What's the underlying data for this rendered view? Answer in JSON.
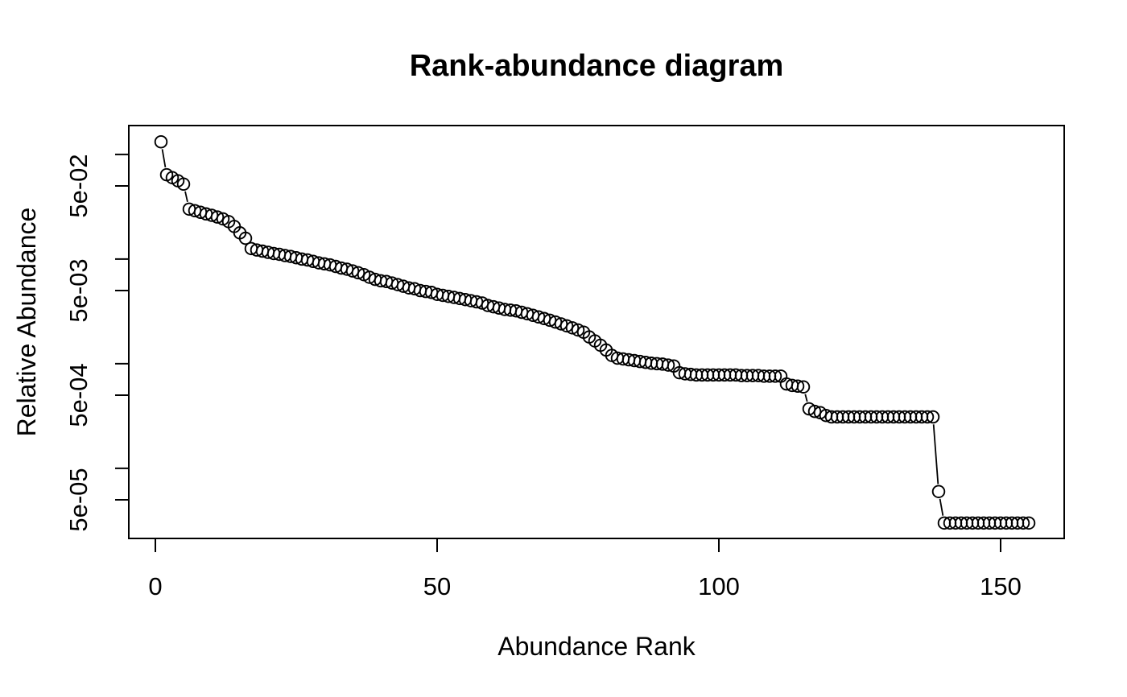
{
  "page": {
    "background": "#ffffff",
    "foreground": "#000000"
  },
  "chart_data": {
    "type": "line",
    "style": "points-with-connecting-segments (R plot type='b', open circle markers pch=1)",
    "title": "Rank-abundance diagram",
    "xlabel": "Abundance Rank",
    "ylabel": "Relative Abundance",
    "legend": "none",
    "grid": false,
    "x_axis": {
      "ticks": [
        0,
        50,
        100,
        150
      ],
      "tick_labels": [
        "0",
        "50",
        "100",
        "150"
      ],
      "lim": [
        -5,
        161
      ]
    },
    "y_axis": {
      "scale": "log10",
      "labeled_ticks": [
        {
          "label": "5e-02",
          "value": 0.05
        },
        {
          "label": "5e-03",
          "value": 0.005
        },
        {
          "label": "5e-04",
          "value": 0.0005
        },
        {
          "label": "5e-05",
          "value": 5e-05
        }
      ],
      "unlabeled_ticks": [
        0.1,
        0.01,
        0.001,
        0.0001
      ],
      "lim": [
        2.14e-05,
        0.185
      ]
    },
    "marker": "open-circle",
    "series_name": "relative abundance by species rank",
    "rank_start": 1,
    "values": [
      0.132,
      0.064,
      0.06,
      0.056,
      0.052,
      0.03,
      0.029,
      0.028,
      0.027,
      0.0262,
      0.0252,
      0.0242,
      0.0228,
      0.0205,
      0.0178,
      0.0158,
      0.0126,
      0.0122,
      0.0119,
      0.0116,
      0.0113,
      0.0111,
      0.0108,
      0.0106,
      0.0103,
      0.01,
      0.0098,
      0.0095,
      0.0092,
      0.009,
      0.0088,
      0.0085,
      0.0082,
      0.008,
      0.0077,
      0.0074,
      0.0071,
      0.0067,
      0.0064,
      0.0062,
      0.0061,
      0.0059,
      0.0057,
      0.0055,
      0.0053,
      0.0052,
      0.005,
      0.0049,
      0.0048,
      0.0046,
      0.0045,
      0.0044,
      0.0043,
      0.0042,
      0.0041,
      0.004,
      0.0039,
      0.0038,
      0.0036,
      0.0035,
      0.0034,
      0.0033,
      0.00325,
      0.0032,
      0.0031,
      0.003,
      0.0029,
      0.0028,
      0.0027,
      0.0026,
      0.0025,
      0.0024,
      0.0023,
      0.0022,
      0.0021,
      0.002,
      0.0018,
      0.00165,
      0.0015,
      0.00135,
      0.0012,
      0.00113,
      0.00111,
      0.00109,
      0.00107,
      0.00105,
      0.00103,
      0.00101,
      0.001,
      0.00099,
      0.00097,
      0.00095,
      0.00082,
      0.0008,
      0.00079,
      0.00078,
      0.00078,
      0.00078,
      0.00078,
      0.00078,
      0.00078,
      0.00078,
      0.00078,
      0.00077,
      0.00077,
      0.00077,
      0.00077,
      0.00076,
      0.00076,
      0.00076,
      0.00076,
      0.00064,
      0.00062,
      0.00061,
      0.0006,
      0.00037,
      0.00035,
      0.00034,
      0.00032,
      0.00031,
      0.00031,
      0.00031,
      0.00031,
      0.00031,
      0.00031,
      0.00031,
      0.00031,
      0.00031,
      0.00031,
      0.00031,
      0.00031,
      0.00031,
      0.00031,
      0.00031,
      0.00031,
      0.00031,
      0.00031,
      0.00031,
      6e-05,
      3e-05,
      3e-05,
      3e-05,
      3e-05,
      3e-05,
      3e-05,
      3e-05,
      3e-05,
      3e-05,
      3e-05,
      3e-05,
      3e-05,
      3e-05,
      3e-05,
      3e-05,
      3e-05
    ]
  }
}
